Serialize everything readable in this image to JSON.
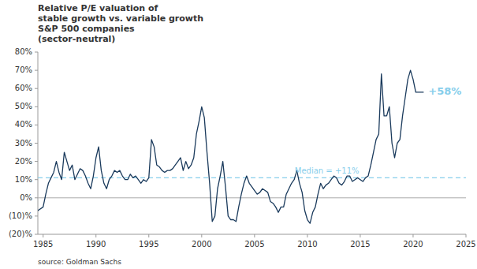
{
  "chart_data": {
    "type": "line",
    "title": "Relative P/E valuation of\nstable growth vs. variable growth\nS&P 500 companies\n(sector-neutral)",
    "source": "source: Goldman Sachs",
    "color": "#1a3a5c",
    "grid": false,
    "xlim": [
      1984.5,
      2025
    ],
    "ylim": [
      -20,
      80
    ],
    "xticks": [
      1985,
      1990,
      1995,
      2000,
      2005,
      2010,
      2015,
      2020,
      2025
    ],
    "yticks": [
      {
        "value": -20,
        "label": "(20)%"
      },
      {
        "value": -10,
        "label": "(10)%"
      },
      {
        "value": 0,
        "label": "0%"
      },
      {
        "value": 10,
        "label": "10%"
      },
      {
        "value": 20,
        "label": "20%"
      },
      {
        "value": 30,
        "label": "30%"
      },
      {
        "value": 40,
        "label": "40%"
      },
      {
        "value": 50,
        "label": "50%"
      },
      {
        "value": 60,
        "label": "60%"
      },
      {
        "value": 70,
        "label": "70%"
      },
      {
        "value": 80,
        "label": "80%"
      }
    ],
    "reference_lines": [
      {
        "value": 0,
        "color": "#aaaaaa"
      },
      {
        "value": 11,
        "label": "Median = +11%",
        "color": "#87ceeb",
        "line_style": "dashed"
      }
    ],
    "annotations": [
      {
        "text": "+58%",
        "color": "#87ceeb"
      }
    ],
    "x": [
      1984.5,
      1985.0,
      1985.25,
      1985.5,
      1985.75,
      1986.0,
      1986.25,
      1986.5,
      1986.75,
      1987.0,
      1987.25,
      1987.5,
      1987.75,
      1988.0,
      1988.25,
      1988.5,
      1988.75,
      1989.0,
      1989.25,
      1989.5,
      1989.75,
      1990.0,
      1990.25,
      1990.5,
      1990.75,
      1991.0,
      1991.25,
      1991.5,
      1991.75,
      1992.0,
      1992.25,
      1992.5,
      1992.75,
      1993.0,
      1993.25,
      1993.5,
      1993.75,
      1994.0,
      1994.25,
      1994.5,
      1994.75,
      1995.0,
      1995.25,
      1995.5,
      1995.75,
      1996.0,
      1996.25,
      1996.5,
      1996.75,
      1997.0,
      1997.25,
      1997.5,
      1997.75,
      1998.0,
      1998.25,
      1998.5,
      1998.75,
      1999.0,
      1999.25,
      1999.5,
      1999.75,
      2000.0,
      2000.25,
      2000.5,
      2000.75,
      2001.0,
      2001.25,
      2001.5,
      2001.75,
      2002.0,
      2002.25,
      2002.5,
      2002.75,
      2003.0,
      2003.25,
      2003.5,
      2003.75,
      2004.0,
      2004.25,
      2004.5,
      2004.75,
      2005.0,
      2005.25,
      2005.5,
      2005.75,
      2006.0,
      2006.25,
      2006.5,
      2006.75,
      2007.0,
      2007.25,
      2007.5,
      2007.75,
      2008.0,
      2008.25,
      2008.5,
      2008.75,
      2009.0,
      2009.25,
      2009.5,
      2009.75,
      2010.0,
      2010.25,
      2010.5,
      2010.75,
      2011.0,
      2011.25,
      2011.5,
      2011.75,
      2012.0,
      2012.25,
      2012.5,
      2012.75,
      2013.0,
      2013.25,
      2013.5,
      2013.75,
      2014.0,
      2014.25,
      2014.5,
      2014.75,
      2015.0,
      2015.25,
      2015.5,
      2015.75,
      2016.0,
      2016.25,
      2016.5,
      2016.75,
      2017.0,
      2017.25,
      2017.5,
      2017.75,
      2018.0,
      2018.25,
      2018.5,
      2018.75,
      2019.0,
      2019.25,
      2019.5,
      2019.75,
      2020.0,
      2020.25,
      2020.5,
      2020.75,
      2021.0
    ],
    "values": [
      -7,
      -5,
      2,
      8,
      11,
      14,
      20,
      14,
      10,
      25,
      20,
      15,
      18,
      10,
      13,
      16,
      15,
      12,
      8,
      5,
      12,
      22,
      28,
      15,
      8,
      5,
      10,
      12,
      15,
      14,
      15,
      12,
      10,
      10,
      13,
      11,
      12,
      10,
      8,
      10,
      9,
      11,
      32,
      28,
      18,
      17,
      15,
      14,
      15,
      15,
      16,
      18,
      20,
      22,
      15,
      20,
      16,
      18,
      22,
      35,
      42,
      50,
      44,
      25,
      8,
      -13,
      -10,
      5,
      12,
      20,
      6,
      -10,
      -12,
      -12,
      -13,
      -5,
      2,
      8,
      12,
      8,
      6,
      4,
      2,
      3,
      5,
      4,
      3,
      -2,
      -3,
      -5,
      -8,
      -5,
      -5,
      2,
      5,
      8,
      10,
      15,
      8,
      3,
      -7,
      -12,
      -14,
      -8,
      -5,
      2,
      8,
      5,
      7,
      8,
      10,
      12,
      11,
      8,
      7,
      9,
      12,
      12,
      9,
      10,
      11,
      10,
      9,
      11,
      12,
      18,
      25,
      32,
      35,
      68,
      45,
      45,
      50,
      30,
      22,
      30,
      32,
      45,
      55,
      65,
      70,
      65,
      58,
      58,
      58,
      58
    ]
  }
}
